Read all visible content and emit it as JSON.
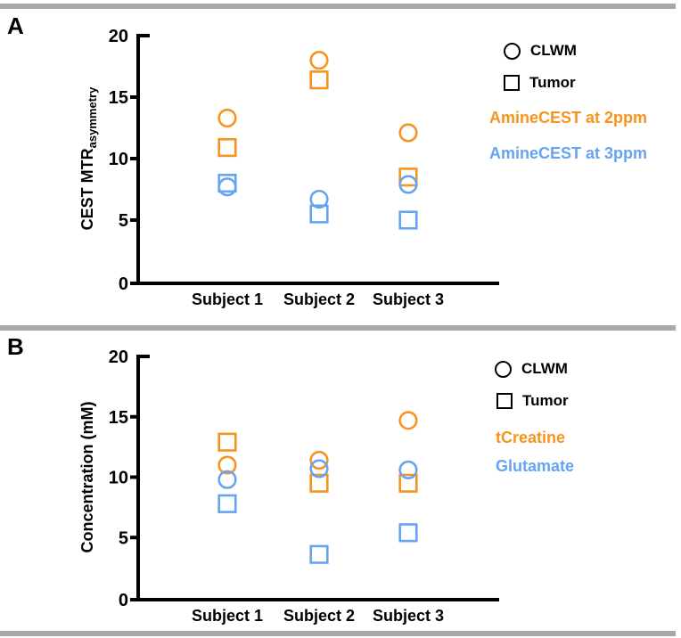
{
  "figure": {
    "divider_color": "#a8a8a8",
    "background": "#ffffff",
    "accent_orange": "#F7941E",
    "accent_blue": "#64A4F0"
  },
  "chart_data": [
    {
      "type": "scatter",
      "panel": "A",
      "title": "",
      "xlabel": "",
      "ylabel_main": "CEST MTR",
      "ylabel_sub": "asymmetry",
      "ylim": [
        0,
        20
      ],
      "yticks": [
        0,
        5,
        10,
        15,
        20
      ],
      "grid": false,
      "legend_position": "top-right",
      "categories": [
        "Subject 1",
        "Subject 2",
        "Subject 3"
      ],
      "legend": {
        "shape_items": [
          {
            "shape": "circle",
            "label": "CLWM"
          },
          {
            "shape": "square",
            "label": "Tumor"
          }
        ],
        "color_items": [
          {
            "label": "AmineCEST at 2ppm",
            "color": "#F7941E"
          },
          {
            "label": "AmineCEST at 3ppm",
            "color": "#64A4F0"
          }
        ]
      },
      "series": [
        {
          "name": "AmineCEST at 2ppm - CLWM",
          "shape": "circle",
          "color": "#F7941E",
          "values": [
            13.3,
            18.0,
            12.1
          ]
        },
        {
          "name": "AmineCEST at 2ppm - Tumor",
          "shape": "square",
          "color": "#F7941E",
          "values": [
            10.9,
            16.4,
            8.5
          ]
        },
        {
          "name": "AmineCEST at 3ppm - CLWM",
          "shape": "circle",
          "color": "#64A4F0",
          "values": [
            7.7,
            6.7,
            7.9
          ]
        },
        {
          "name": "AmineCEST at 3ppm - Tumor",
          "shape": "square",
          "color": "#64A4F0",
          "values": [
            8.0,
            5.5,
            5.0
          ]
        }
      ]
    },
    {
      "type": "scatter",
      "panel": "B",
      "title": "",
      "xlabel": "",
      "ylabel_main": "Concentration (mM)",
      "ylabel_sub": "",
      "ylim": [
        0,
        20
      ],
      "yticks": [
        0,
        5,
        10,
        15,
        20
      ],
      "grid": false,
      "legend_position": "top-right",
      "categories": [
        "Subject 1",
        "Subject 2",
        "Subject 3"
      ],
      "legend": {
        "shape_items": [
          {
            "shape": "circle",
            "label": "CLWM"
          },
          {
            "shape": "square",
            "label": "Tumor"
          }
        ],
        "color_items": [
          {
            "label": "tCreatine",
            "color": "#F7941E"
          },
          {
            "label": "Glutamate",
            "color": "#64A4F0"
          }
        ]
      },
      "series": [
        {
          "name": "tCreatine - CLWM",
          "shape": "circle",
          "color": "#F7941E",
          "values": [
            11.0,
            11.4,
            14.7
          ]
        },
        {
          "name": "tCreatine - Tumor",
          "shape": "square",
          "color": "#F7941E",
          "values": [
            12.9,
            9.5,
            9.5
          ]
        },
        {
          "name": "Glutamate - CLWM",
          "shape": "circle",
          "color": "#64A4F0",
          "values": [
            9.8,
            10.7,
            10.6
          ]
        },
        {
          "name": "Glutamate - Tumor",
          "shape": "square",
          "color": "#64A4F0",
          "values": [
            7.8,
            3.6,
            5.4
          ]
        }
      ]
    }
  ]
}
